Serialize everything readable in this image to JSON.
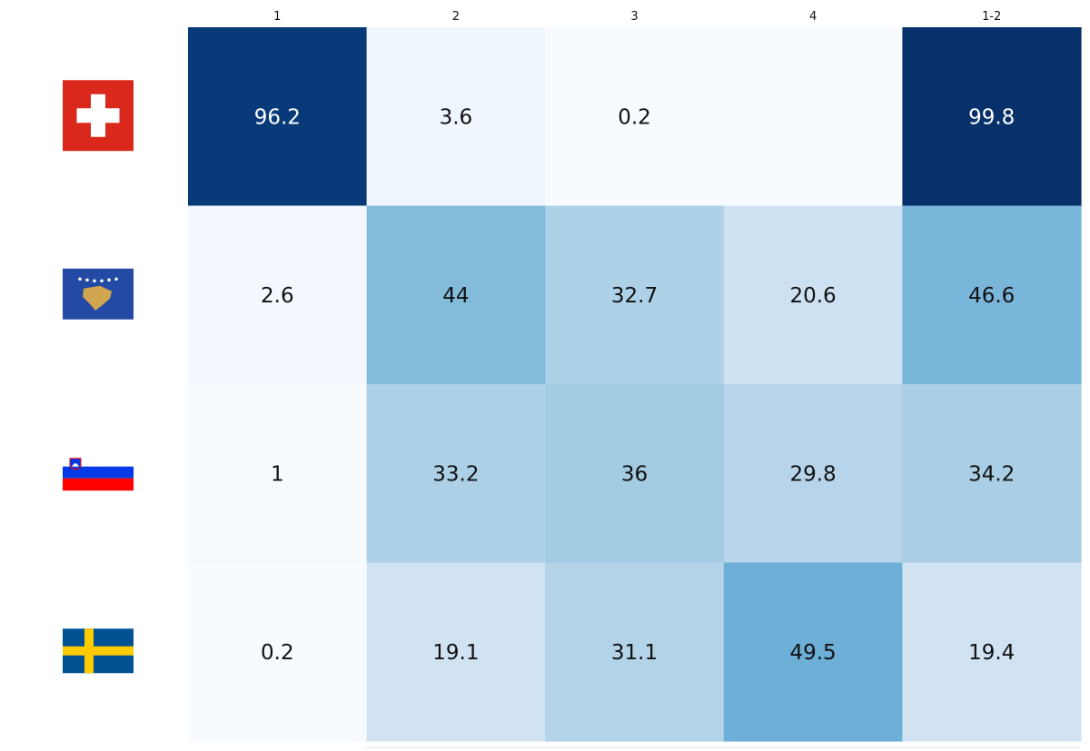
{
  "chart_data": {
    "type": "heatmap",
    "columns": [
      "1",
      "2",
      "3",
      "4",
      "1-2"
    ],
    "rows": [
      {
        "flag": "switzerland-flag",
        "values": [
          96.2,
          3.6,
          0.2,
          null,
          99.8
        ]
      },
      {
        "flag": "kosovo-flag",
        "values": [
          2.6,
          44,
          32.7,
          20.6,
          46.6
        ]
      },
      {
        "flag": "slovenia-flag",
        "values": [
          1,
          33.2,
          36,
          29.8,
          34.2
        ]
      },
      {
        "flag": "sweden-flag",
        "values": [
          0.2,
          19.1,
          31.1,
          49.5,
          19.4
        ]
      }
    ],
    "value_range": [
      0,
      100
    ],
    "colormap": "Blues",
    "colors": {
      "low": "#f7fbff",
      "high": "#08306b",
      "text_dark": "#111111",
      "text_light": "#ffffff"
    }
  }
}
